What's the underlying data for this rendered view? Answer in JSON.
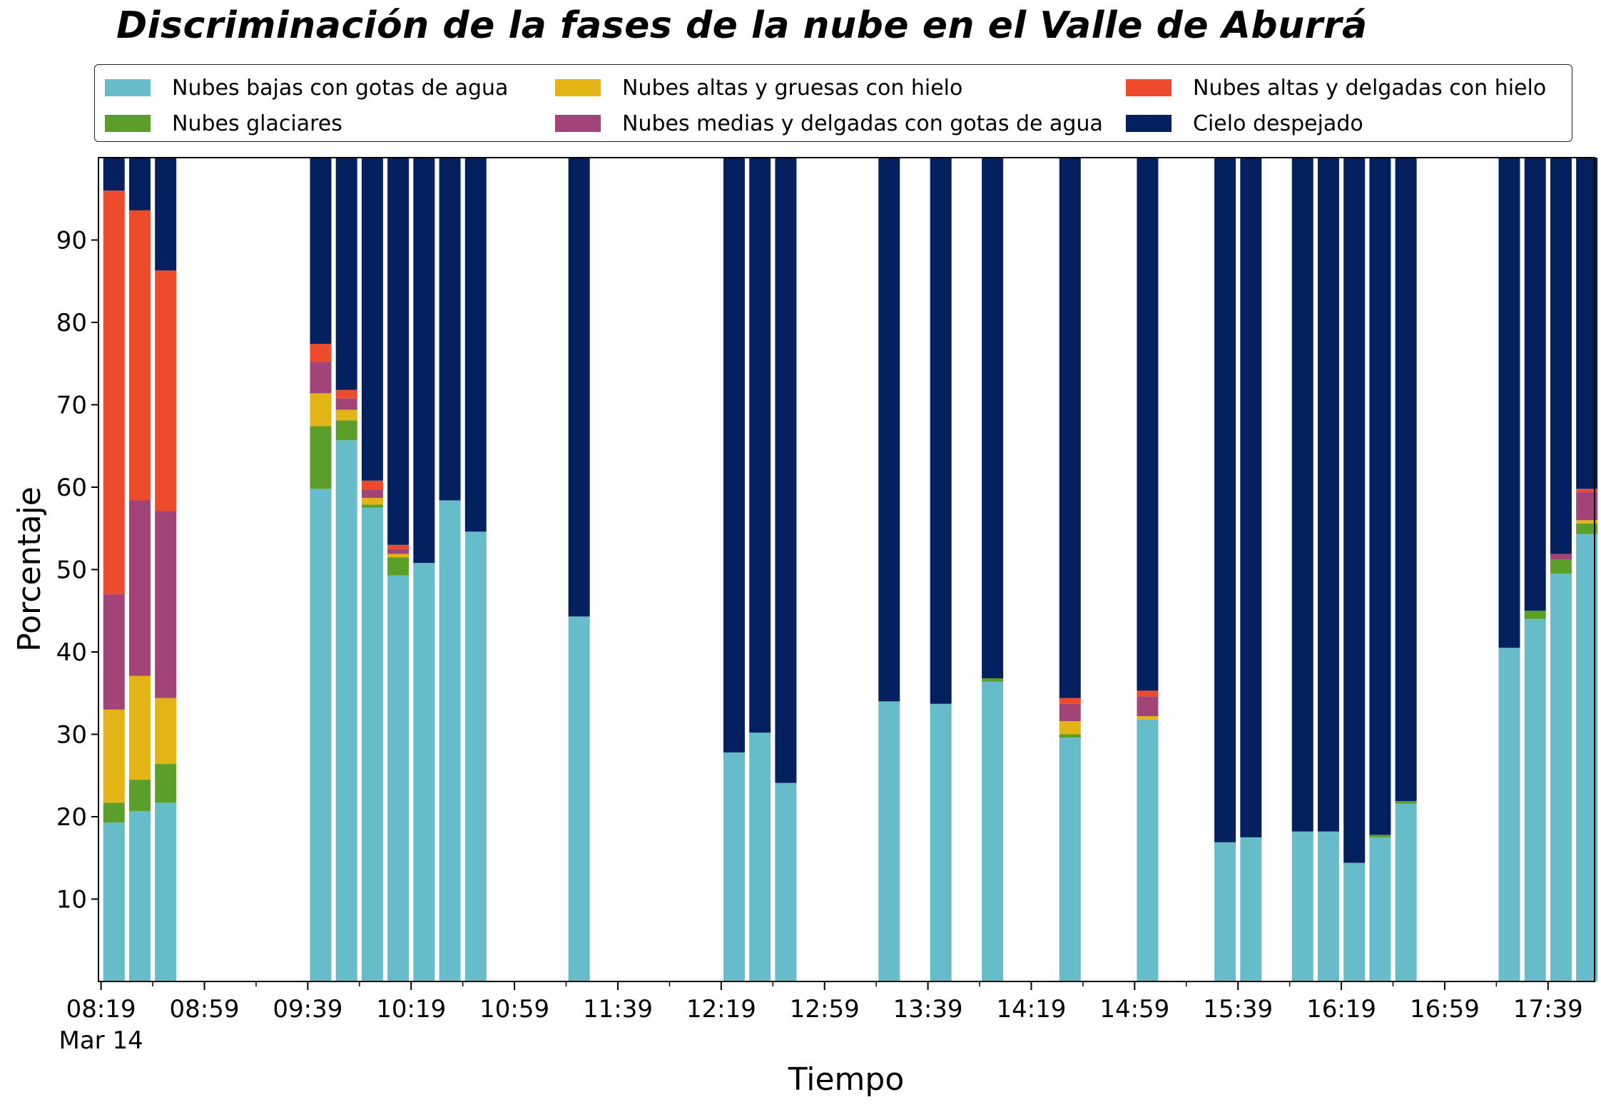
{
  "chart_data": {
    "type": "bar",
    "stacked": true,
    "title": "Discriminación de la fases de la nube en el Valle de Aburrá",
    "xlabel": "Tiempo",
    "ylabel": "Porcentaje",
    "ylim": [
      0,
      100
    ],
    "yticks": [
      10,
      20,
      30,
      40,
      50,
      60,
      70,
      80,
      90
    ],
    "grid": false,
    "legend_position": "top",
    "x_date_label": "Mar 14",
    "x_tick_labels": [
      "08:19",
      "08:59",
      "09:39",
      "10:19",
      "10:59",
      "11:39",
      "12:19",
      "12:59",
      "13:39",
      "14:19",
      "14:59",
      "15:39",
      "16:19",
      "16:59",
      "17:39"
    ],
    "x_tick_minutes": [
      499,
      539,
      579,
      619,
      659,
      699,
      739,
      779,
      819,
      859,
      899,
      939,
      979,
      1019,
      1059
    ],
    "x_range_minutes": [
      498,
      1077
    ],
    "x_bar_times": [
      "08:24",
      "08:34",
      "08:44",
      "09:44",
      "09:54",
      "10:04",
      "10:14",
      "10:24",
      "10:34",
      "10:44",
      "11:24",
      "12:24",
      "12:34",
      "12:44",
      "13:24",
      "13:44",
      "14:04",
      "14:34",
      "15:04",
      "15:34",
      "15:44",
      "16:04",
      "16:14",
      "16:24",
      "16:34",
      "16:44",
      "17:24",
      "17:34",
      "17:44",
      "17:54"
    ],
    "x_bar_minutes": [
      504,
      514,
      524,
      584,
      594,
      604,
      614,
      624,
      634,
      644,
      684,
      744,
      754,
      764,
      804,
      824,
      844,
      874,
      904,
      934,
      944,
      964,
      974,
      984,
      994,
      1004,
      1044,
      1054,
      1064,
      1074
    ],
    "series": [
      {
        "name": "Nubes bajas con gotas de agua",
        "color": "#66BCC8",
        "values": [
          19.3,
          20.7,
          21.7,
          59.8,
          65.7,
          57.5,
          49.3,
          50.8,
          58.4,
          54.6,
          44.3,
          27.8,
          30.2,
          24.1,
          34.0,
          33.7,
          36.4,
          29.6,
          31.8,
          16.9,
          17.5,
          18.2,
          18.2,
          14.4,
          17.5,
          21.6,
          40.5,
          44.0,
          49.5,
          54.3
        ]
      },
      {
        "name": "Nubes glaciares",
        "color": "#5B9E2A",
        "values": [
          2.4,
          3.8,
          4.7,
          7.6,
          2.4,
          0.4,
          2.2,
          0.0,
          0.0,
          0.0,
          0.0,
          0.0,
          0.0,
          0.0,
          0.0,
          0.0,
          0.4,
          0.4,
          0.0,
          0.0,
          0.0,
          0.0,
          0.0,
          0.0,
          0.3,
          0.3,
          0.0,
          1.0,
          1.7,
          1.3
        ]
      },
      {
        "name": "Nubes altas y gruesas con hielo",
        "color": "#E2B416",
        "values": [
          11.3,
          12.6,
          8.0,
          4.0,
          1.3,
          0.8,
          0.4,
          0.0,
          0.0,
          0.0,
          0.0,
          0.0,
          0.0,
          0.0,
          0.0,
          0.0,
          0.0,
          1.6,
          0.4,
          0.0,
          0.0,
          0.0,
          0.0,
          0.0,
          0.0,
          0.0,
          0.0,
          0.0,
          0.0,
          0.4
        ]
      },
      {
        "name": "Nubes medias y delgadas con gotas de agua",
        "color": "#A24478",
        "values": [
          14.0,
          21.3,
          22.7,
          3.8,
          1.4,
          1.0,
          0.6,
          0.0,
          0.0,
          0.0,
          0.0,
          0.0,
          0.0,
          0.0,
          0.0,
          0.0,
          0.0,
          2.1,
          2.4,
          0.0,
          0.0,
          0.0,
          0.0,
          0.0,
          0.0,
          0.0,
          0.0,
          0.0,
          0.7,
          3.4
        ]
      },
      {
        "name": "Nubes altas y delgadas con hielo",
        "color": "#EE4A2C",
        "values": [
          49.0,
          35.2,
          29.2,
          2.2,
          1.0,
          1.1,
          0.5,
          0.0,
          0.0,
          0.0,
          0.0,
          0.0,
          0.0,
          0.0,
          0.0,
          0.0,
          0.0,
          0.7,
          0.7,
          0.0,
          0.0,
          0.0,
          0.0,
          0.0,
          0.0,
          0.0,
          0.0,
          0.0,
          0.0,
          0.4
        ]
      },
      {
        "name": "Cielo despejado",
        "color": "#04205F",
        "values": [
          4.0,
          6.4,
          13.7,
          22.6,
          28.2,
          39.2,
          47.0,
          49.2,
          41.6,
          45.4,
          55.7,
          72.2,
          69.8,
          75.9,
          66.0,
          66.3,
          63.2,
          65.6,
          64.7,
          83.1,
          82.5,
          81.8,
          81.8,
          85.6,
          82.2,
          78.1,
          59.5,
          55.0,
          48.1,
          40.2
        ]
      }
    ]
  }
}
